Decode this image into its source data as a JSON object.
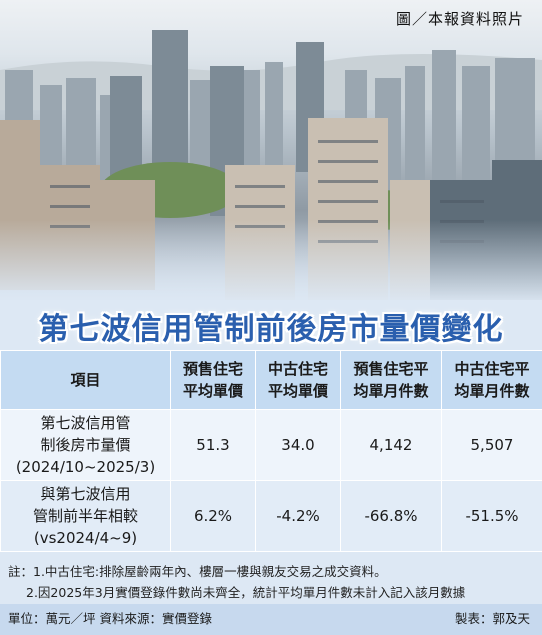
{
  "photo": {
    "credit": "圖／本報資料照片"
  },
  "title": "第七波信用管制前後房市量價變化",
  "table": {
    "headers": [
      [
        "項目"
      ],
      [
        "預售住宅",
        "平均單價"
      ],
      [
        "中古住宅",
        "平均單價"
      ],
      [
        "預售住宅平",
        "均單月件數"
      ],
      [
        "中古住宅平",
        "均單月件數"
      ]
    ],
    "rows": [
      {
        "label": [
          "第七波信用管",
          "制後房市量價",
          "(2024/10~2025/3)"
        ],
        "values": [
          "51.3",
          "34.0",
          "4,142",
          "5,507"
        ]
      },
      {
        "label": [
          "與第七波信用",
          "管制前半年相較",
          "(vs2024/4~9)"
        ],
        "values": [
          "6.2%",
          "-4.2%",
          "-66.8%",
          "-51.5%"
        ]
      }
    ]
  },
  "notes": {
    "note1": "註：1.中古住宅:排除屋齡兩年內、樓層一樓與親友交易之成交資料。",
    "note2": "2.因2025年3月實價登錄件數尚未齊全，統計平均單月件數未計入記入該月數據"
  },
  "footer": {
    "unit_source": "單位：萬元／坪 資料來源：實價登錄",
    "maker": "製表：郭及天"
  }
}
